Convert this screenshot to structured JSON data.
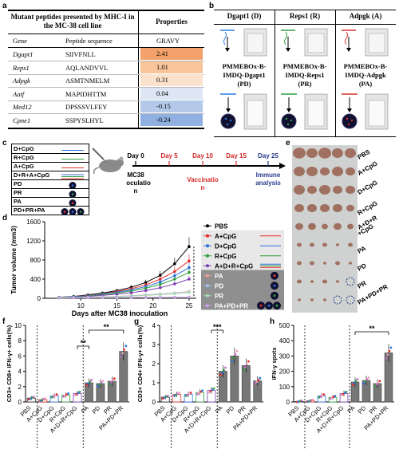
{
  "panel_labels": [
    "a",
    "b",
    "c",
    "d",
    "e",
    "f",
    "g",
    "h"
  ],
  "table_a": {
    "title": "Mutant peptides presented by MHC-I in the MC-38 cell line",
    "properties_header": "Properties",
    "col_gene": "Gene",
    "col_seq": "Peptide sequence",
    "col_gravy": "GRAVY",
    "rows": [
      {
        "gene": "Dgapt1",
        "seq": "SIIVFNLL",
        "gravy": "2.41",
        "color": "#f4a26b"
      },
      {
        "gene": "Reps1",
        "seq": "AQLANDVVL",
        "gravy": "1.01",
        "color": "#f8c49a"
      },
      {
        "gene": "Adpgk",
        "seq": "ASMTNMELM",
        "gravy": "0.31",
        "color": "#fbe2cd"
      },
      {
        "gene": "Aatf",
        "seq": "MAPIDHTTM",
        "gravy": "0.04",
        "color": "#dce6f4"
      },
      {
        "gene": "Med12",
        "seq": "DPSSSVLFEY",
        "gravy": "-0.15",
        "color": "#b4c9ea"
      },
      {
        "gene": "Cpne1",
        "seq": "SSPYSLHYL",
        "gravy": "-0.24",
        "color": "#8fb0e0"
      }
    ]
  },
  "panel_b": {
    "headers": [
      "Dgapt1 (D)",
      "Reps1 (R)",
      "Adpgk (A)"
    ],
    "formulations": [
      [
        "PMMEBOx-B-",
        "IMDQ-Dgapt1",
        "(PD)"
      ],
      [
        "PMMEBOx-B-",
        "IMDQ-Reps1",
        "(PR)"
      ],
      [
        "PMMEBOx-B-",
        "IMDQ-Adpgk",
        "(PA)"
      ]
    ],
    "colors": [
      "#2c7be5",
      "#2e9e3e",
      "#d9302b"
    ]
  },
  "panel_c": {
    "groups": [
      "D+CpG",
      "R+CpG",
      "A+CpG",
      "D+R+A+CpG",
      "PD",
      "PR",
      "PA",
      "PD+PR+PA"
    ],
    "days": [
      "Day 0",
      "Day 5",
      "Day 10",
      "Day 15",
      "Day 25"
    ],
    "inoc": [
      "MC38",
      "inoculatio",
      "n"
    ],
    "vacc": [
      "Vaccinatio",
      "n"
    ],
    "immune": [
      "Immune",
      "analysis"
    ]
  },
  "chart_data": [
    {
      "type": "line",
      "panel": "d",
      "ylabel": "Tumor volume (mm3)",
      "xlabel": "Days after MC38 inoculation",
      "x": [
        7,
        9,
        11,
        13,
        15,
        17,
        19,
        21,
        23,
        25
      ],
      "xlim": [
        5,
        26
      ],
      "ylim": [
        0,
        1600
      ],
      "xticks": [
        10,
        15,
        20,
        25
      ],
      "yticks": [
        0,
        400,
        800,
        1200,
        1600
      ],
      "series": [
        {
          "name": "PBS",
          "color": "#000000",
          "values": [
            20,
            40,
            70,
            110,
            160,
            230,
            330,
            480,
            720,
            1080
          ]
        },
        {
          "name": "A+CpG",
          "color": "#e8302a",
          "values": [
            20,
            35,
            60,
            95,
            140,
            200,
            280,
            400,
            560,
            780
          ]
        },
        {
          "name": "D+CpG",
          "color": "#2c6fe0",
          "values": [
            20,
            35,
            55,
            90,
            125,
            175,
            245,
            340,
            470,
            640
          ]
        },
        {
          "name": "R+CpG",
          "color": "#2e9e3e",
          "values": [
            20,
            30,
            50,
            80,
            110,
            150,
            210,
            290,
            400,
            540
          ]
        },
        {
          "name": "A+D+R+CpG",
          "color": "#7b3fb3",
          "values": [
            15,
            25,
            40,
            60,
            85,
            115,
            160,
            220,
            300,
            400
          ]
        },
        {
          "name": "PA",
          "color": "#f09a9a",
          "values": [
            10,
            15,
            20,
            30,
            40,
            55,
            70,
            90,
            110,
            140
          ]
        },
        {
          "name": "PD",
          "color": "#9fc2ee",
          "values": [
            10,
            15,
            20,
            28,
            38,
            50,
            65,
            85,
            105,
            130
          ]
        },
        {
          "name": "PR",
          "color": "#a9dcb0",
          "values": [
            10,
            14,
            18,
            26,
            35,
            45,
            60,
            75,
            95,
            120
          ]
        },
        {
          "name": "PA+PD+PR",
          "color": "#c9a3e6",
          "values": [
            5,
            8,
            10,
            12,
            14,
            16,
            18,
            20,
            22,
            25
          ]
        }
      ],
      "legend": "right"
    },
    {
      "type": "bar",
      "panel": "f",
      "ylabel": "CD3+ CD8+ IFN-γ+ cells(%)",
      "categories": [
        "PBS",
        "A+CpG",
        "D+CpG",
        "R+CpG",
        "A+D+R+CpG",
        "PA",
        "PD",
        "PR",
        "PA+PD+PR"
      ],
      "values": [
        0.5,
        0.3,
        0.8,
        0.9,
        1.1,
        2.5,
        2.4,
        2.7,
        6.6
      ],
      "ylim": [
        0,
        10
      ],
      "yticks": [
        0,
        2,
        4,
        6,
        8,
        10
      ],
      "significance": [
        [
          "**",
          "A+D+R+CpG",
          "PA"
        ],
        [
          "**",
          "PA",
          "PA+PD+PR"
        ]
      ]
    },
    {
      "type": "bar",
      "panel": "g",
      "ylabel": "CD3+ CD4+ IFN-γ+ cells(%)",
      "categories": [
        "PBS",
        "A+CpG",
        "D+CpG",
        "R+CpG",
        "A+D+R+CpG",
        "PA",
        "PD",
        "PR",
        "PA+PD+PR"
      ],
      "values": [
        0.25,
        0.4,
        0.4,
        0.5,
        0.6,
        1.6,
        2.4,
        1.9,
        1.1
      ],
      "ylim": [
        0,
        4
      ],
      "yticks": [
        0,
        1,
        2,
        3,
        4
      ],
      "significance": [
        [
          "***",
          "A+D+R+CpG",
          "PA"
        ]
      ]
    },
    {
      "type": "bar",
      "panel": "h",
      "ylabel": "IFN-γ spots",
      "categories": [
        "PBS",
        "A+CpG",
        "D+CpG",
        "R+CpG",
        "A+D+R+CpG",
        "PA",
        "PD",
        "PR",
        "PA+PD+PR"
      ],
      "values": [
        3,
        8,
        40,
        30,
        55,
        130,
        140,
        120,
        320
      ],
      "ylim": [
        0,
        500
      ],
      "yticks": [
        0,
        100,
        200,
        300,
        400,
        500
      ],
      "significance": [
        [
          "**",
          "PA",
          "PA+PD+PR"
        ]
      ]
    }
  ],
  "panel_e": {
    "labels": [
      "PBS",
      "A+CpG",
      "D+CpG",
      "R+CpG",
      "A+D+R",
      "+CpG",
      "PA",
      "PD",
      "PR",
      "PA+PD+PR"
    ]
  },
  "bar_colors": [
    "#2a2a2a",
    "#e8302a",
    "#2c6fe0",
    "#2e9e3e",
    "#7b3fb3",
    "#666666",
    "#666666",
    "#666666",
    "#666666"
  ],
  "bar_palette": [
    "#ffffff",
    "#f4c4c4",
    "#c9dcf6",
    "#c8e6cc",
    "#dccaee",
    "#888888",
    "#888888",
    "#888888",
    "#888888"
  ]
}
